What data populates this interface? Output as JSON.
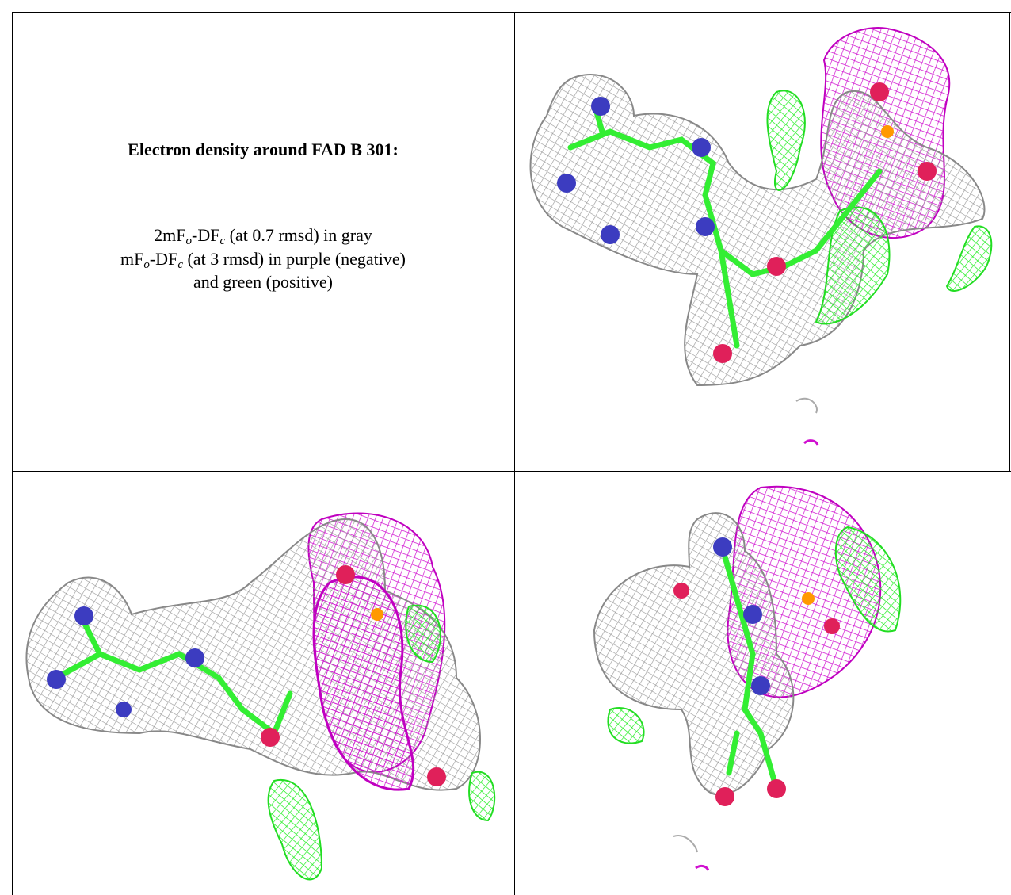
{
  "heading": "Electron density around FAD B 301:",
  "legend": {
    "lines": [
      [
        "2mF",
        "o",
        "-DF",
        "c",
        " (at 0.7 rmsd) in gray"
      ],
      [
        "mF",
        "o",
        "-DF",
        "c",
        " (at 3 rmsd) in purple (negative)"
      ],
      [
        "and green (positive)"
      ]
    ]
  }
}
